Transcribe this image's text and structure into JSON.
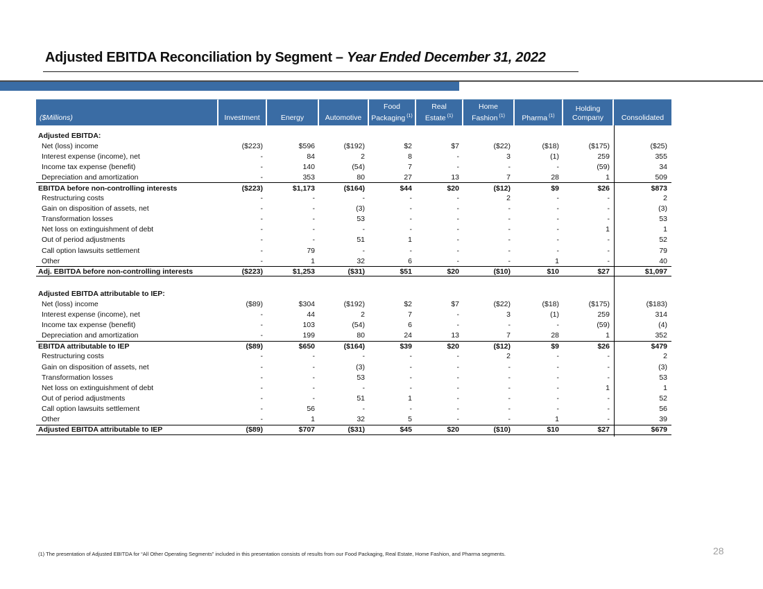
{
  "slide": {
    "title_main": "Adjusted EBITDA Reconciliation by Segment – ",
    "title_period": "Year Ended December 31, 2022",
    "footnote": "(1) The presentation of Adjusted EBITDA for “All Other Operating Segments” included in this presentation consists of results from our Food Packaging, Real Estate, Home Fashion, and Pharma segments.",
    "page_number": "28"
  },
  "colors": {
    "header_blue": "#3A6CA4",
    "divider_bar_blue": "#3A6CA4",
    "divider_line_dark": "#4a4a4a",
    "total_border_black": "#000000",
    "page_number_gray": "#9E9E9E"
  },
  "table": {
    "unit_label": "($Millions)",
    "columns": [
      {
        "id": "investment",
        "lines": [
          "Investment"
        ],
        "sup": ""
      },
      {
        "id": "energy",
        "lines": [
          "Energy"
        ],
        "sup": ""
      },
      {
        "id": "automotive",
        "lines": [
          "Automotive"
        ],
        "sup": ""
      },
      {
        "id": "food-packaging",
        "lines": [
          "Food",
          "Packaging"
        ],
        "sup": "(1)"
      },
      {
        "id": "real-estate",
        "lines": [
          "Real",
          "Estate"
        ],
        "sup": "(1)"
      },
      {
        "id": "home-fashion",
        "lines": [
          "Home",
          "Fashion"
        ],
        "sup": "(1)"
      },
      {
        "id": "pharma",
        "lines": [
          "Pharma"
        ],
        "sup": "(1)"
      },
      {
        "id": "holding-company",
        "lines": [
          "Holding",
          "Company"
        ],
        "sup": ""
      },
      {
        "id": "consolidated",
        "lines": [
          "Consolidated"
        ],
        "sup": ""
      }
    ],
    "rows": [
      {
        "label": "Adjusted EBITDA:",
        "style": "section",
        "values": []
      },
      {
        "label": "Net (loss) income",
        "style": "item",
        "values": [
          "($223)",
          "$596",
          "($192)",
          "$2",
          "$7",
          "($22)",
          "($18)",
          "($175)",
          "($25)"
        ]
      },
      {
        "label": "Interest expense (income), net",
        "style": "item",
        "values": [
          "-",
          "84",
          "2",
          "8",
          "-",
          "3",
          "(1)",
          "259",
          "355"
        ]
      },
      {
        "label": "Income tax expense (benefit)",
        "style": "item",
        "values": [
          "-",
          "140",
          "(54)",
          "7",
          "-",
          "-",
          "-",
          "(59)",
          "34"
        ]
      },
      {
        "label": "Depreciation and amortization",
        "style": "item",
        "values": [
          "-",
          "353",
          "80",
          "27",
          "13",
          "7",
          "28",
          "1",
          "509"
        ]
      },
      {
        "label": "EBITDA before non-controlling interests",
        "style": "total",
        "values": [
          "($223)",
          "$1,173",
          "($164)",
          "$44",
          "$20",
          "($12)",
          "$9",
          "$26",
          "$873"
        ]
      },
      {
        "label": "Restructuring costs",
        "style": "item",
        "values": [
          "-",
          "-",
          "-",
          "-",
          "-",
          "2",
          "-",
          "-",
          "2"
        ]
      },
      {
        "label": "Gain on disposition of assets, net",
        "style": "item",
        "values": [
          "-",
          "-",
          "(3)",
          "-",
          "-",
          "-",
          "-",
          "-",
          "(3)"
        ]
      },
      {
        "label": "Transformation losses",
        "style": "item",
        "values": [
          "-",
          "-",
          "53",
          "-",
          "-",
          "-",
          "-",
          "-",
          "53"
        ]
      },
      {
        "label": "Net loss on extinguishment of debt",
        "style": "item",
        "values": [
          "-",
          "-",
          "-",
          "-",
          "-",
          "-",
          "-",
          "1",
          "1"
        ]
      },
      {
        "label": "Out of period adjustments",
        "style": "item",
        "values": [
          "-",
          "-",
          "51",
          "1",
          "-",
          "-",
          "-",
          "-",
          "52"
        ]
      },
      {
        "label": "Call option lawsuits settlement",
        "style": "item",
        "values": [
          "-",
          "79",
          "-",
          "-",
          "-",
          "-",
          "-",
          "-",
          "79"
        ]
      },
      {
        "label": "Other",
        "style": "item",
        "values": [
          "-",
          "1",
          "32",
          "6",
          "-",
          "-",
          "1",
          "-",
          "40"
        ]
      },
      {
        "label": "Adj. EBITDA before non-controlling interests",
        "style": "grand",
        "values": [
          "($223)",
          "$1,253",
          "($31)",
          "$51",
          "$20",
          "($10)",
          "$10",
          "$27",
          "$1,097"
        ]
      },
      {
        "label": "",
        "style": "spacer",
        "values": []
      },
      {
        "label": "Adjusted EBITDA attributable to IEP:",
        "style": "section",
        "values": []
      },
      {
        "label": "Net (loss) income",
        "style": "item",
        "values": [
          "($89)",
          "$304",
          "($192)",
          "$2",
          "$7",
          "($22)",
          "($18)",
          "($175)",
          "($183)"
        ]
      },
      {
        "label": "Interest expense (income), net",
        "style": "item",
        "values": [
          "-",
          "44",
          "2",
          "7",
          "-",
          "3",
          "(1)",
          "259",
          "314"
        ]
      },
      {
        "label": "Income tax expense (benefit)",
        "style": "item",
        "values": [
          "-",
          "103",
          "(54)",
          "6",
          "-",
          "-",
          "-",
          "(59)",
          "(4)"
        ]
      },
      {
        "label": "Depreciation and amortization",
        "style": "item",
        "values": [
          "-",
          "199",
          "80",
          "24",
          "13",
          "7",
          "28",
          "1",
          "352"
        ]
      },
      {
        "label": "EBITDA attributable to IEP",
        "style": "total",
        "values": [
          "($89)",
          "$650",
          "($164)",
          "$39",
          "$20",
          "($12)",
          "$9",
          "$26",
          "$479"
        ]
      },
      {
        "label": "Restructuring costs",
        "style": "item",
        "values": [
          "-",
          "-",
          "-",
          "-",
          "-",
          "2",
          "-",
          "-",
          "2"
        ]
      },
      {
        "label": "Gain on disposition of assets, net",
        "style": "item",
        "values": [
          "-",
          "-",
          "(3)",
          "-",
          "-",
          "-",
          "-",
          "-",
          "(3)"
        ]
      },
      {
        "label": "Transformation losses",
        "style": "item",
        "values": [
          "-",
          "-",
          "53",
          "-",
          "-",
          "-",
          "-",
          "-",
          "53"
        ]
      },
      {
        "label": "Net loss on extinguishment of debt",
        "style": "item",
        "values": [
          "-",
          "-",
          "-",
          "-",
          "-",
          "-",
          "-",
          "1",
          "1"
        ]
      },
      {
        "label": "Out of period adjustments",
        "style": "item",
        "values": [
          "-",
          "-",
          "51",
          "1",
          "-",
          "-",
          "-",
          "-",
          "52"
        ]
      },
      {
        "label": "Call option lawsuits settlement",
        "style": "item",
        "values": [
          "-",
          "56",
          "-",
          "-",
          "-",
          "-",
          "-",
          "-",
          "56"
        ]
      },
      {
        "label": "Other",
        "style": "item",
        "values": [
          "-",
          "1",
          "32",
          "5",
          "-",
          "-",
          "1",
          "-",
          "39"
        ]
      },
      {
        "label": "Adjusted EBITDA attributable to IEP",
        "style": "grand",
        "values": [
          "($89)",
          "$707",
          "($31)",
          "$45",
          "$20",
          "($10)",
          "$10",
          "$27",
          "$679"
        ]
      }
    ]
  }
}
